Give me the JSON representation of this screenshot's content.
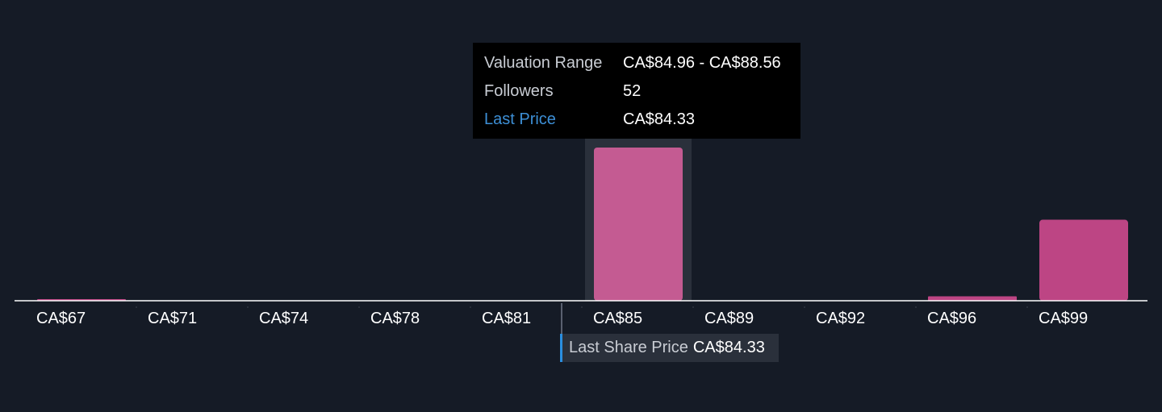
{
  "chart_data": {
    "type": "bar",
    "title": "",
    "xlabel": "",
    "ylabel": "",
    "x_tick_labels": [
      "CA$67",
      "CA$71",
      "CA$74",
      "CA$78",
      "CA$81",
      "CA$85",
      "CA$89",
      "CA$92",
      "CA$96",
      "CA$99"
    ],
    "categories": [
      "CA$67",
      "CA$71",
      "CA$74",
      "CA$78",
      "CA$81",
      "CA$85",
      "CA$89",
      "CA$92",
      "CA$96",
      "CA$99"
    ],
    "values": [
      0.5,
      0,
      0,
      0,
      0,
      52,
      0,
      0,
      1.5,
      27.5
    ],
    "ylim": [
      0,
      55
    ],
    "highlight_index": 5,
    "bar_color": "#c45b92",
    "bar_color_alt": "#bd4584",
    "last_share_price_x": 84.33,
    "x_domain": [
      67,
      102
    ]
  },
  "tooltip": {
    "rows": [
      {
        "label": "Valuation Range",
        "value": "CA$84.96 - CA$88.56"
      },
      {
        "label": "Followers",
        "value": "52"
      },
      {
        "label": "Last Price",
        "value": "CA$84.33"
      }
    ]
  },
  "last_share_price": {
    "label": "Last Share Price",
    "value": "CA$84.33"
  },
  "colors": {
    "background": "#151b26",
    "accent": "#2a8fe0",
    "highlight_band": "#2a303b"
  }
}
